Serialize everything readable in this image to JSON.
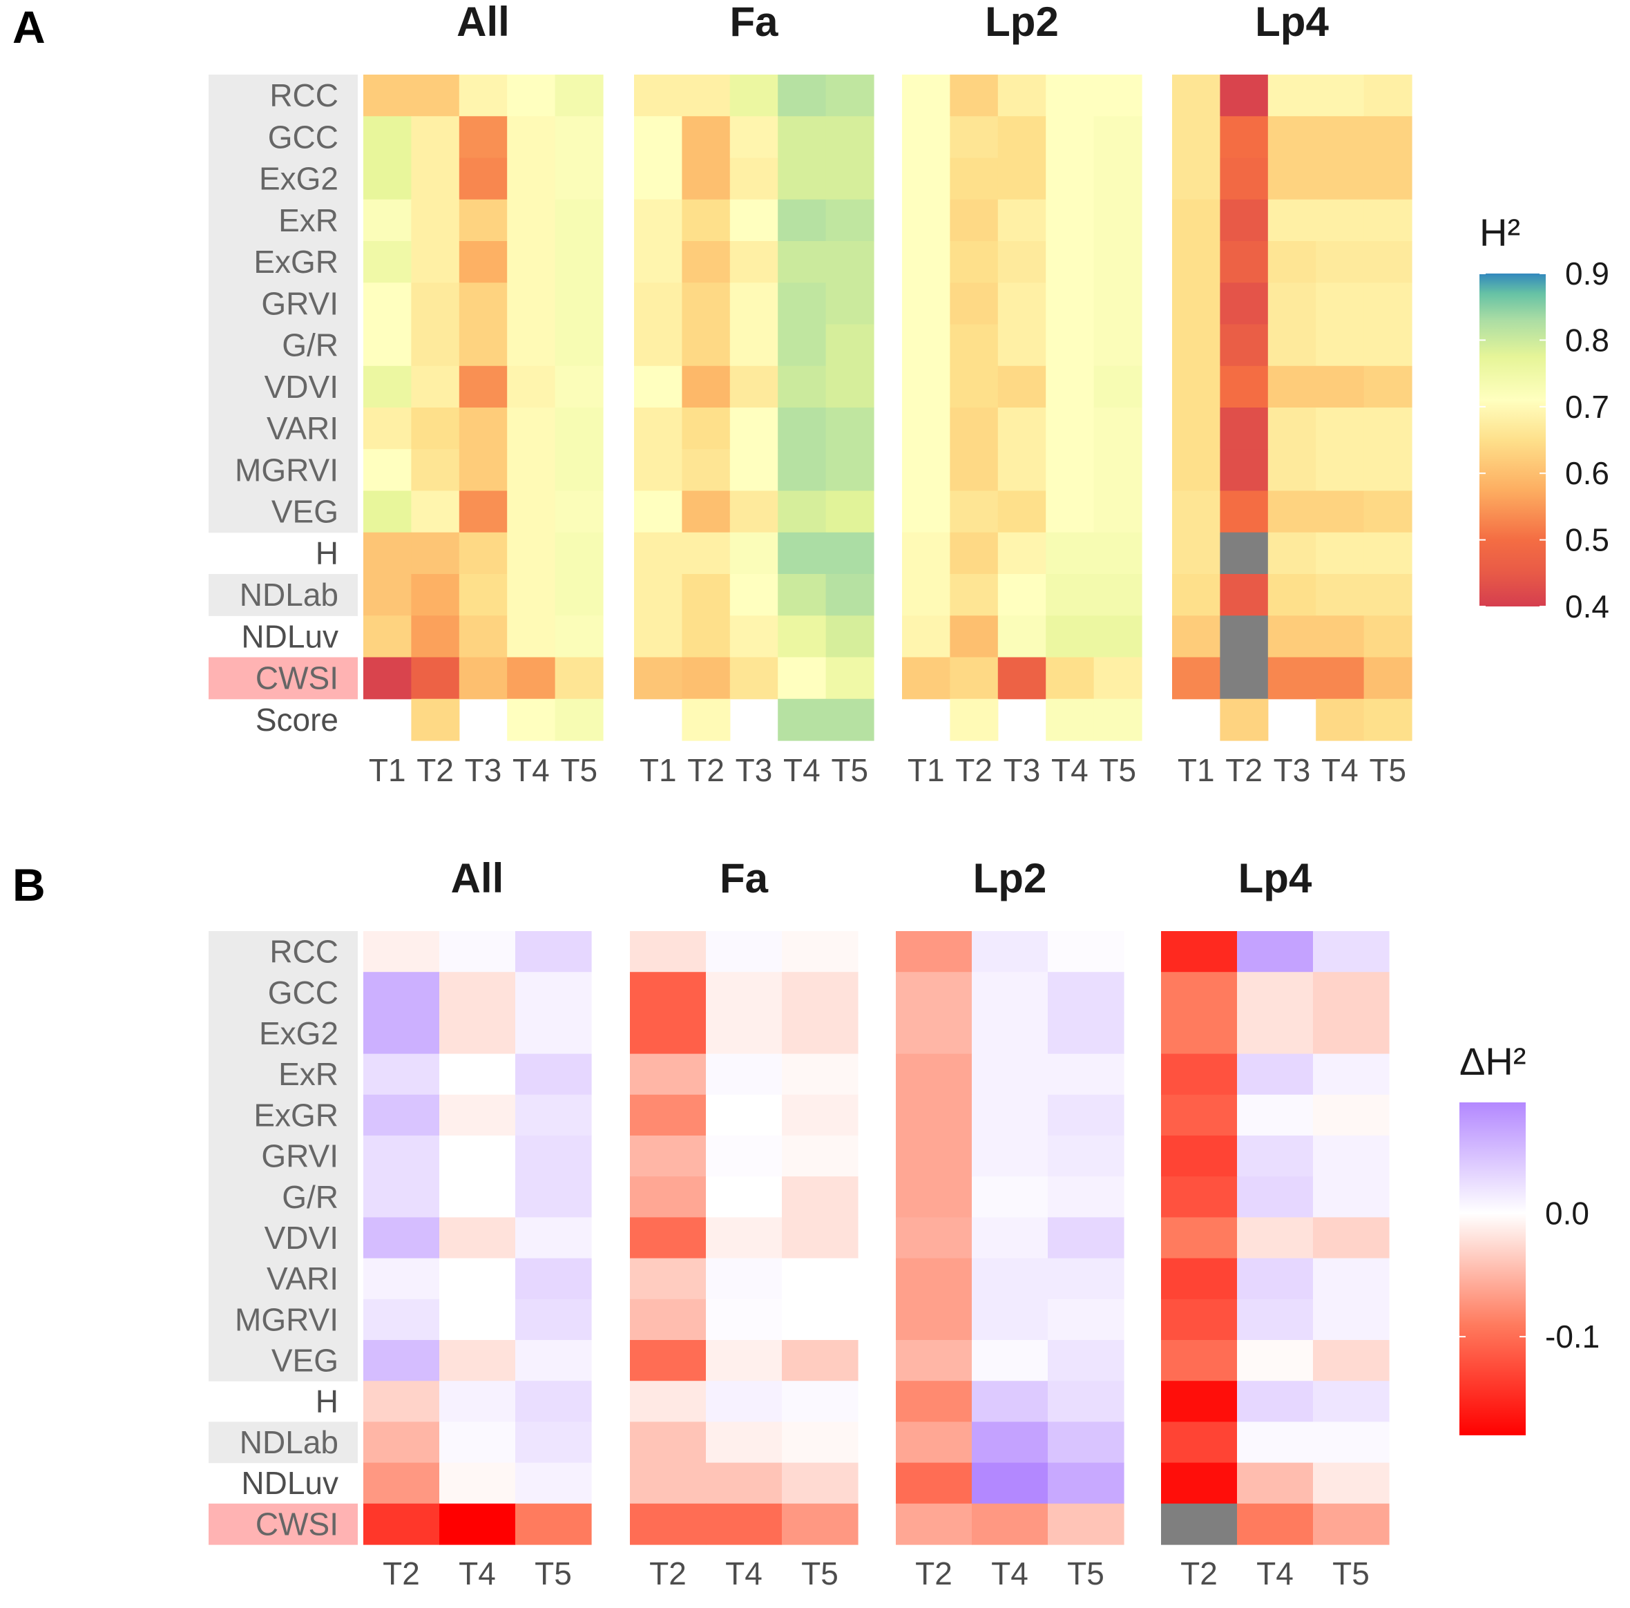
{
  "chart_data": [
    {
      "panel": "A",
      "type": "heatmap",
      "facets": [
        "All",
        "Fa",
        "Lp2",
        "Lp4"
      ],
      "rows": [
        "RCC",
        "GCC",
        "ExG2",
        "ExR",
        "ExGR",
        "GRVI",
        "G/R",
        "VDVI",
        "VARI",
        "MGRVI",
        "VEG",
        "H",
        "NDLab",
        "NDLuv",
        "CWSI",
        "Score"
      ],
      "row_groups": [
        "rgb",
        "rgb",
        "rgb",
        "rgb",
        "rgb",
        "rgb",
        "rgb",
        "rgb",
        "rgb",
        "rgb",
        "rgb",
        "none",
        "rgb",
        "none",
        "cwsi",
        "none"
      ],
      "columns": [
        "T1",
        "T2",
        "T3",
        "T4",
        "T5"
      ],
      "legend": {
        "title": "H²",
        "range": [
          0.4,
          0.9
        ],
        "ticks": [
          "0.4",
          "0.5",
          "0.6",
          "0.7",
          "0.8",
          "0.9"
        ]
      },
      "values": {
        "All": [
          [
            0.62,
            0.62,
            0.69,
            0.71,
            0.74
          ],
          [
            0.77,
            0.68,
            0.54,
            0.7,
            0.72
          ],
          [
            0.77,
            0.68,
            0.53,
            0.7,
            0.72
          ],
          [
            0.72,
            0.68,
            0.63,
            0.7,
            0.73
          ],
          [
            0.75,
            0.68,
            0.58,
            0.7,
            0.73
          ],
          [
            0.71,
            0.67,
            0.63,
            0.7,
            0.73
          ],
          [
            0.71,
            0.67,
            0.63,
            0.7,
            0.73
          ],
          [
            0.76,
            0.68,
            0.54,
            0.69,
            0.72
          ],
          [
            0.68,
            0.65,
            0.62,
            0.7,
            0.73
          ],
          [
            0.71,
            0.66,
            0.62,
            0.7,
            0.73
          ],
          [
            0.77,
            0.69,
            0.54,
            0.7,
            0.72
          ],
          [
            0.61,
            0.61,
            0.64,
            0.7,
            0.73
          ],
          [
            0.61,
            0.58,
            0.65,
            0.7,
            0.73
          ],
          [
            0.63,
            0.56,
            0.63,
            0.7,
            0.72
          ],
          [
            0.41,
            0.47,
            0.6,
            0.56,
            0.66
          ],
          [
            null,
            0.64,
            null,
            0.71,
            0.73
          ]
        ],
        "Fa": [
          [
            0.68,
            0.68,
            0.76,
            0.82,
            0.81
          ],
          [
            0.71,
            0.6,
            0.69,
            0.79,
            0.79
          ],
          [
            0.71,
            0.6,
            0.68,
            0.79,
            0.79
          ],
          [
            0.69,
            0.65,
            0.71,
            0.82,
            0.81
          ],
          [
            0.69,
            0.62,
            0.68,
            0.8,
            0.8
          ],
          [
            0.68,
            0.64,
            0.7,
            0.81,
            0.8
          ],
          [
            0.68,
            0.64,
            0.7,
            0.81,
            0.79
          ],
          [
            0.71,
            0.59,
            0.67,
            0.8,
            0.79
          ],
          [
            0.68,
            0.65,
            0.71,
            0.82,
            0.81
          ],
          [
            0.68,
            0.66,
            0.71,
            0.82,
            0.81
          ],
          [
            0.71,
            0.6,
            0.67,
            0.79,
            0.78
          ],
          [
            0.68,
            0.68,
            0.72,
            0.83,
            0.83
          ],
          [
            0.68,
            0.65,
            0.71,
            0.8,
            0.82
          ],
          [
            0.68,
            0.65,
            0.69,
            0.76,
            0.79
          ],
          [
            0.61,
            0.6,
            0.66,
            0.71,
            0.75
          ],
          [
            null,
            0.7,
            null,
            0.82,
            0.82
          ]
        ],
        "Lp2": [
          [
            0.71,
            0.63,
            0.68,
            0.71,
            0.71
          ],
          [
            0.71,
            0.66,
            0.65,
            0.71,
            0.72
          ],
          [
            0.71,
            0.65,
            0.65,
            0.71,
            0.72
          ],
          [
            0.71,
            0.64,
            0.68,
            0.71,
            0.72
          ],
          [
            0.71,
            0.65,
            0.67,
            0.71,
            0.72
          ],
          [
            0.71,
            0.64,
            0.68,
            0.71,
            0.72
          ],
          [
            0.71,
            0.65,
            0.68,
            0.71,
            0.72
          ],
          [
            0.71,
            0.65,
            0.64,
            0.71,
            0.73
          ],
          [
            0.71,
            0.64,
            0.68,
            0.71,
            0.72
          ],
          [
            0.71,
            0.64,
            0.68,
            0.71,
            0.72
          ],
          [
            0.71,
            0.66,
            0.65,
            0.71,
            0.72
          ],
          [
            0.7,
            0.64,
            0.69,
            0.73,
            0.73
          ],
          [
            0.7,
            0.66,
            0.71,
            0.74,
            0.74
          ],
          [
            0.69,
            0.6,
            0.72,
            0.76,
            0.76
          ],
          [
            0.62,
            0.64,
            0.47,
            0.65,
            0.68
          ],
          [
            null,
            0.7,
            null,
            0.72,
            0.72
          ]
        ],
        "Lp4": [
          [
            0.66,
            0.41,
            0.69,
            0.69,
            0.68
          ],
          [
            0.66,
            0.5,
            0.63,
            0.63,
            0.63
          ],
          [
            0.66,
            0.49,
            0.63,
            0.63,
            0.63
          ],
          [
            0.65,
            0.45,
            0.68,
            0.68,
            0.68
          ],
          [
            0.65,
            0.47,
            0.66,
            0.67,
            0.67
          ],
          [
            0.65,
            0.44,
            0.67,
            0.68,
            0.68
          ],
          [
            0.65,
            0.46,
            0.67,
            0.68,
            0.68
          ],
          [
            0.65,
            0.5,
            0.62,
            0.62,
            0.63
          ],
          [
            0.65,
            0.43,
            0.67,
            0.68,
            0.68
          ],
          [
            0.65,
            0.43,
            0.67,
            0.68,
            0.68
          ],
          [
            0.66,
            0.5,
            0.63,
            0.63,
            0.64
          ],
          [
            0.66,
            null,
            0.67,
            0.68,
            0.68
          ],
          [
            0.65,
            0.45,
            0.65,
            0.66,
            0.66
          ],
          [
            0.62,
            null,
            0.62,
            0.62,
            0.64
          ],
          [
            0.53,
            null,
            0.53,
            0.53,
            0.6
          ],
          [
            null,
            0.63,
            null,
            0.64,
            0.65
          ]
        ]
      }
    },
    {
      "panel": "B",
      "type": "heatmap",
      "facets": [
        "All",
        "Fa",
        "Lp2",
        "Lp4"
      ],
      "rows": [
        "RCC",
        "GCC",
        "ExG2",
        "ExR",
        "ExGR",
        "GRVI",
        "G/R",
        "VDVI",
        "VARI",
        "MGRVI",
        "VEG",
        "H",
        "NDLab",
        "NDLuv",
        "CWSI"
      ],
      "row_groups": [
        "rgb",
        "rgb",
        "rgb",
        "rgb",
        "rgb",
        "rgb",
        "rgb",
        "rgb",
        "rgb",
        "rgb",
        "rgb",
        "none",
        "rgb",
        "none",
        "cwsi"
      ],
      "columns": [
        "T2",
        "T4",
        "T5"
      ],
      "legend": {
        "title": "ΔH²",
        "range": [
          -0.18,
          0.09
        ],
        "ticks": [
          "-0.1",
          "0.0"
        ]
      },
      "values": {
        "All": [
          [
            -0.01,
            0.005,
            0.03
          ],
          [
            0.06,
            -0.02,
            0.01
          ],
          [
            0.06,
            -0.02,
            0.01
          ],
          [
            0.025,
            0.0,
            0.03
          ],
          [
            0.045,
            -0.01,
            0.02
          ],
          [
            0.025,
            0.0,
            0.025
          ],
          [
            0.025,
            0.0,
            0.025
          ],
          [
            0.05,
            -0.02,
            0.01
          ],
          [
            0.01,
            0.0,
            0.03
          ],
          [
            0.02,
            0.0,
            0.025
          ],
          [
            0.05,
            -0.02,
            0.01
          ],
          [
            -0.03,
            0.01,
            0.025
          ],
          [
            -0.05,
            0.005,
            0.02
          ],
          [
            -0.07,
            -0.005,
            0.01
          ],
          [
            -0.14,
            -0.18,
            -0.09
          ]
        ],
        "Fa": [
          [
            -0.02,
            0.005,
            -0.005
          ],
          [
            -0.11,
            -0.01,
            -0.02
          ],
          [
            -0.11,
            -0.01,
            -0.02
          ],
          [
            -0.05,
            0.005,
            -0.005
          ],
          [
            -0.08,
            0.0,
            -0.01
          ],
          [
            -0.05,
            0.003,
            -0.005
          ],
          [
            -0.06,
            0.0,
            -0.02
          ],
          [
            -0.1,
            -0.01,
            -0.02
          ],
          [
            -0.035,
            0.005,
            0.0
          ],
          [
            -0.045,
            0.003,
            0.0
          ],
          [
            -0.1,
            -0.01,
            -0.035
          ],
          [
            -0.015,
            0.01,
            0.005
          ],
          [
            -0.04,
            -0.01,
            -0.005
          ],
          [
            -0.04,
            -0.04,
            -0.025
          ],
          [
            -0.1,
            -0.1,
            -0.07
          ]
        ],
        "Lp2": [
          [
            -0.07,
            0.015,
            0.003
          ],
          [
            -0.05,
            0.01,
            0.025
          ],
          [
            -0.05,
            0.01,
            0.025
          ],
          [
            -0.06,
            0.01,
            0.01
          ],
          [
            -0.06,
            0.01,
            0.02
          ],
          [
            -0.06,
            0.01,
            0.015
          ],
          [
            -0.06,
            0.005,
            0.01
          ],
          [
            -0.055,
            0.01,
            0.03
          ],
          [
            -0.065,
            0.015,
            0.015
          ],
          [
            -0.065,
            0.015,
            0.01
          ],
          [
            -0.05,
            0.005,
            0.02
          ],
          [
            -0.08,
            0.04,
            0.025
          ],
          [
            -0.06,
            0.07,
            0.045
          ],
          [
            -0.1,
            0.09,
            0.065
          ],
          [
            -0.06,
            -0.07,
            -0.04
          ]
        ],
        "Lp4": [
          [
            -0.15,
            0.07,
            0.025
          ],
          [
            -0.09,
            -0.02,
            -0.03
          ],
          [
            -0.09,
            -0.02,
            -0.03
          ],
          [
            -0.12,
            0.03,
            0.01
          ],
          [
            -0.11,
            0.005,
            -0.005
          ],
          [
            -0.13,
            0.025,
            0.01
          ],
          [
            -0.12,
            0.03,
            0.01
          ],
          [
            -0.09,
            -0.02,
            -0.03
          ],
          [
            -0.13,
            0.03,
            0.01
          ],
          [
            -0.12,
            0.025,
            0.01
          ],
          [
            -0.1,
            -0.003,
            -0.025
          ],
          [
            -0.17,
            0.03,
            0.02
          ],
          [
            -0.13,
            0.005,
            0.005
          ],
          [
            -0.17,
            -0.045,
            -0.015
          ],
          [
            null,
            -0.09,
            -0.06
          ]
        ]
      }
    }
  ]
}
